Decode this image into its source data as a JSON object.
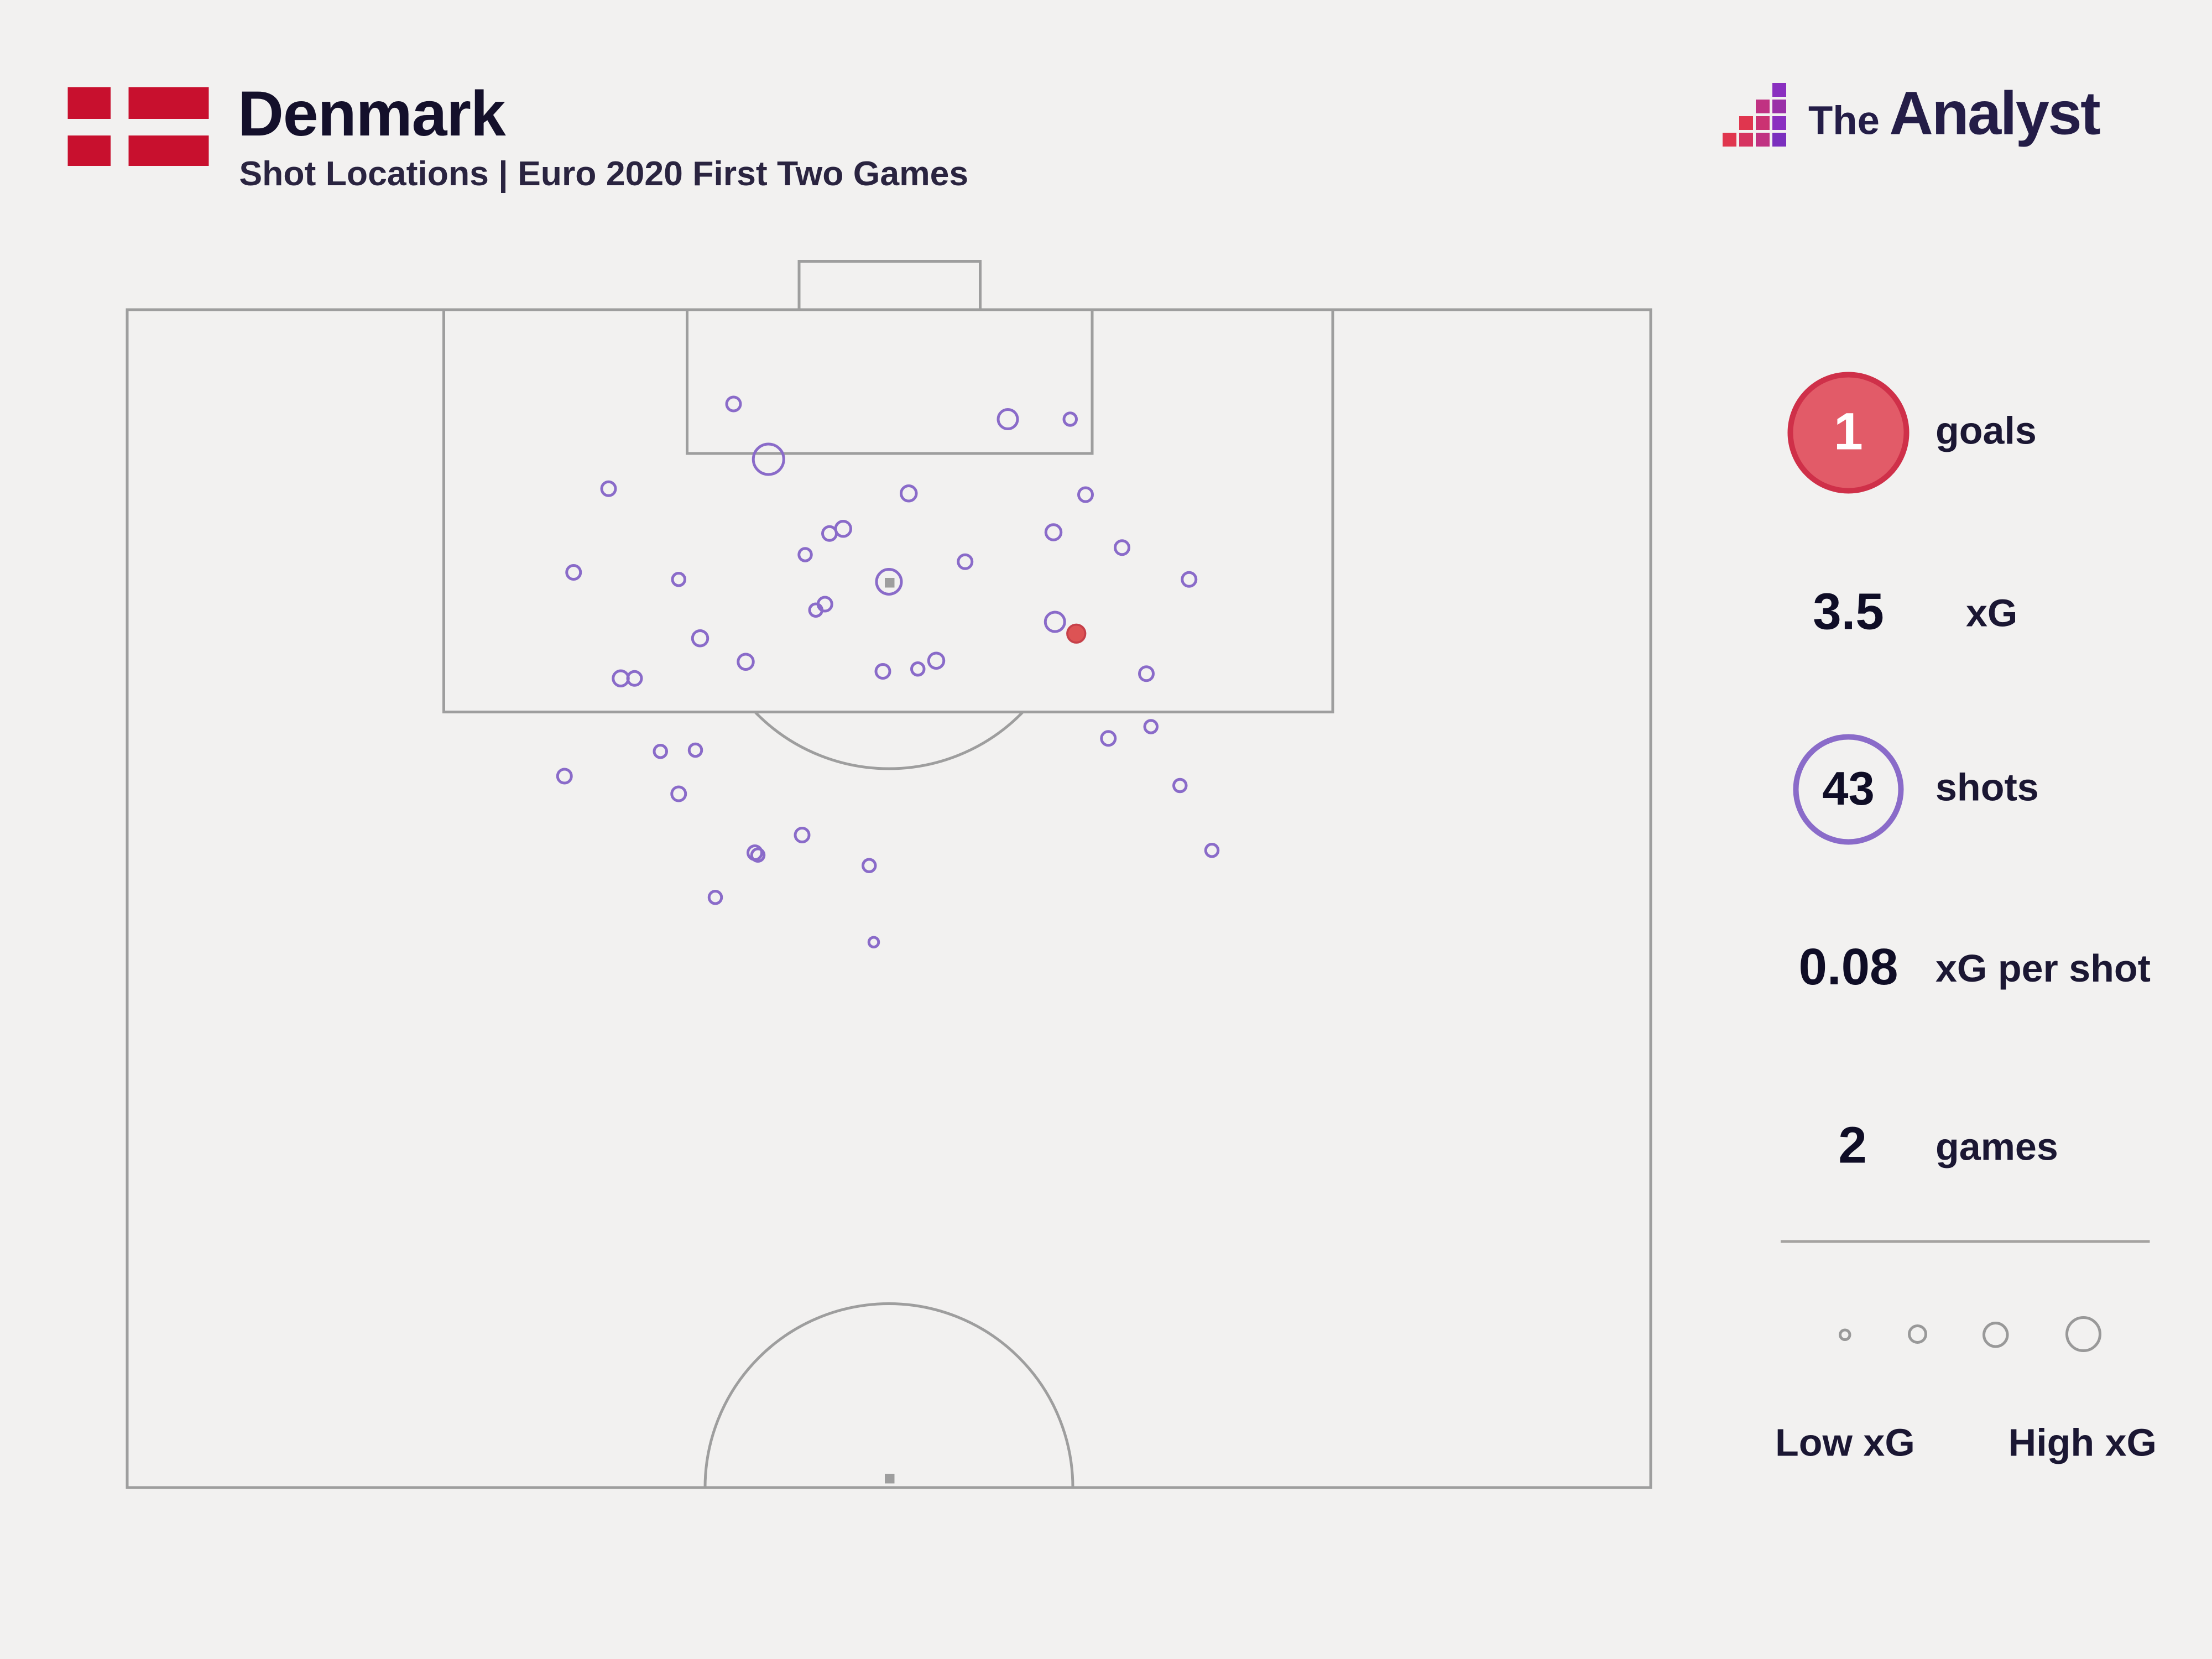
{
  "header": {
    "title": "Denmark",
    "subtitle": "Shot Locations | Euro 2020 First Two Games"
  },
  "logo": {
    "the": "The",
    "analyst": "Analyst"
  },
  "stats": {
    "goals": {
      "value": "1",
      "label": "goals"
    },
    "xg": {
      "value": "3.5",
      "label": "xG"
    },
    "shots": {
      "value": "43",
      "label": "shots"
    },
    "xg_per_shot": {
      "value": "0.08",
      "label": "xG per shot"
    },
    "games": {
      "value": "2",
      "label": "games"
    }
  },
  "legend": {
    "low": "Low xG",
    "high": "High xG",
    "sizes": [
      4.5,
      7,
      9.5,
      13
    ]
  },
  "colors": {
    "background": "#f2f1f0",
    "pitch_line": "#9e9e9e",
    "shot_purple": "#8a6bc9",
    "goal_fill": "#dd5354",
    "goal_stroke": "#c64049",
    "flag_red": "#c8102e",
    "badge_red_fill": "#e25b68",
    "badge_red_border": "#cf3049",
    "text_dark": "#1b1733"
  },
  "chart_data": {
    "type": "scatter",
    "title": "Denmark Shot Locations | Euro 2020 First Two Games",
    "x_range": [
      0,
      100
    ],
    "y_range": [
      0,
      100
    ],
    "coordinate_note": "x = percent across pitch width (left to right), y = percent down from goal line; marker r encodes xG (bigger = higher xG); goal=true is the red filled marker",
    "totals": {
      "goals": 1,
      "xg": 3.5,
      "shots": 43,
      "xg_per_shot": 0.08,
      "games": 2
    },
    "shots": [
      {
        "x": 39.8,
        "y": 8.0,
        "r": 5,
        "goal": false
      },
      {
        "x": 57.8,
        "y": 9.3,
        "r": 7,
        "goal": false
      },
      {
        "x": 61.9,
        "y": 9.3,
        "r": 4.5,
        "goal": false
      },
      {
        "x": 42.1,
        "y": 12.7,
        "r": 11,
        "goal": false
      },
      {
        "x": 31.6,
        "y": 15.2,
        "r": 5,
        "goal": false
      },
      {
        "x": 51.3,
        "y": 15.6,
        "r": 5.5,
        "goal": false
      },
      {
        "x": 62.9,
        "y": 15.7,
        "r": 5,
        "goal": false
      },
      {
        "x": 47.0,
        "y": 18.6,
        "r": 5.5,
        "goal": false
      },
      {
        "x": 46.1,
        "y": 19.0,
        "r": 5,
        "goal": false
      },
      {
        "x": 60.8,
        "y": 18.9,
        "r": 5.5,
        "goal": false
      },
      {
        "x": 65.3,
        "y": 20.2,
        "r": 5,
        "goal": false
      },
      {
        "x": 44.5,
        "y": 20.8,
        "r": 4.5,
        "goal": false
      },
      {
        "x": 29.3,
        "y": 22.3,
        "r": 5,
        "goal": false
      },
      {
        "x": 55.0,
        "y": 21.4,
        "r": 5,
        "goal": false
      },
      {
        "x": 50.0,
        "y": 23.1,
        "r": 9,
        "goal": false
      },
      {
        "x": 69.7,
        "y": 22.9,
        "r": 5,
        "goal": false
      },
      {
        "x": 36.2,
        "y": 22.9,
        "r": 4.5,
        "goal": false
      },
      {
        "x": 45.8,
        "y": 25.0,
        "r": 5,
        "goal": false
      },
      {
        "x": 45.2,
        "y": 25.5,
        "r": 4.5,
        "goal": false
      },
      {
        "x": 60.9,
        "y": 26.5,
        "r": 7,
        "goal": false
      },
      {
        "x": 62.3,
        "y": 27.5,
        "r": 6.5,
        "goal": true
      },
      {
        "x": 37.6,
        "y": 27.9,
        "r": 5.5,
        "goal": false
      },
      {
        "x": 40.6,
        "y": 29.9,
        "r": 5.5,
        "goal": false
      },
      {
        "x": 49.6,
        "y": 30.7,
        "r": 5,
        "goal": false
      },
      {
        "x": 53.1,
        "y": 29.8,
        "r": 5.5,
        "goal": false
      },
      {
        "x": 51.9,
        "y": 30.5,
        "r": 4.5,
        "goal": false
      },
      {
        "x": 66.9,
        "y": 30.9,
        "r": 5,
        "goal": false
      },
      {
        "x": 32.4,
        "y": 31.3,
        "r": 5.5,
        "goal": false
      },
      {
        "x": 33.3,
        "y": 31.3,
        "r": 5,
        "goal": false
      },
      {
        "x": 64.4,
        "y": 36.4,
        "r": 5,
        "goal": false
      },
      {
        "x": 67.2,
        "y": 35.4,
        "r": 4.5,
        "goal": false
      },
      {
        "x": 35.0,
        "y": 37.5,
        "r": 4.5,
        "goal": false
      },
      {
        "x": 37.3,
        "y": 37.4,
        "r": 4.5,
        "goal": false
      },
      {
        "x": 28.7,
        "y": 39.6,
        "r": 5,
        "goal": false
      },
      {
        "x": 36.2,
        "y": 41.1,
        "r": 5,
        "goal": false
      },
      {
        "x": 69.1,
        "y": 40.4,
        "r": 4.5,
        "goal": false
      },
      {
        "x": 44.3,
        "y": 44.6,
        "r": 5,
        "goal": false
      },
      {
        "x": 41.2,
        "y": 46.1,
        "r": 5,
        "goal": false
      },
      {
        "x": 41.4,
        "y": 46.3,
        "r": 4.5,
        "goal": false
      },
      {
        "x": 71.2,
        "y": 45.9,
        "r": 4.5,
        "goal": false
      },
      {
        "x": 48.7,
        "y": 47.2,
        "r": 4.5,
        "goal": false
      },
      {
        "x": 38.6,
        "y": 49.9,
        "r": 4.5,
        "goal": false
      },
      {
        "x": 49.0,
        "y": 53.7,
        "r": 3.5,
        "goal": false
      }
    ]
  }
}
